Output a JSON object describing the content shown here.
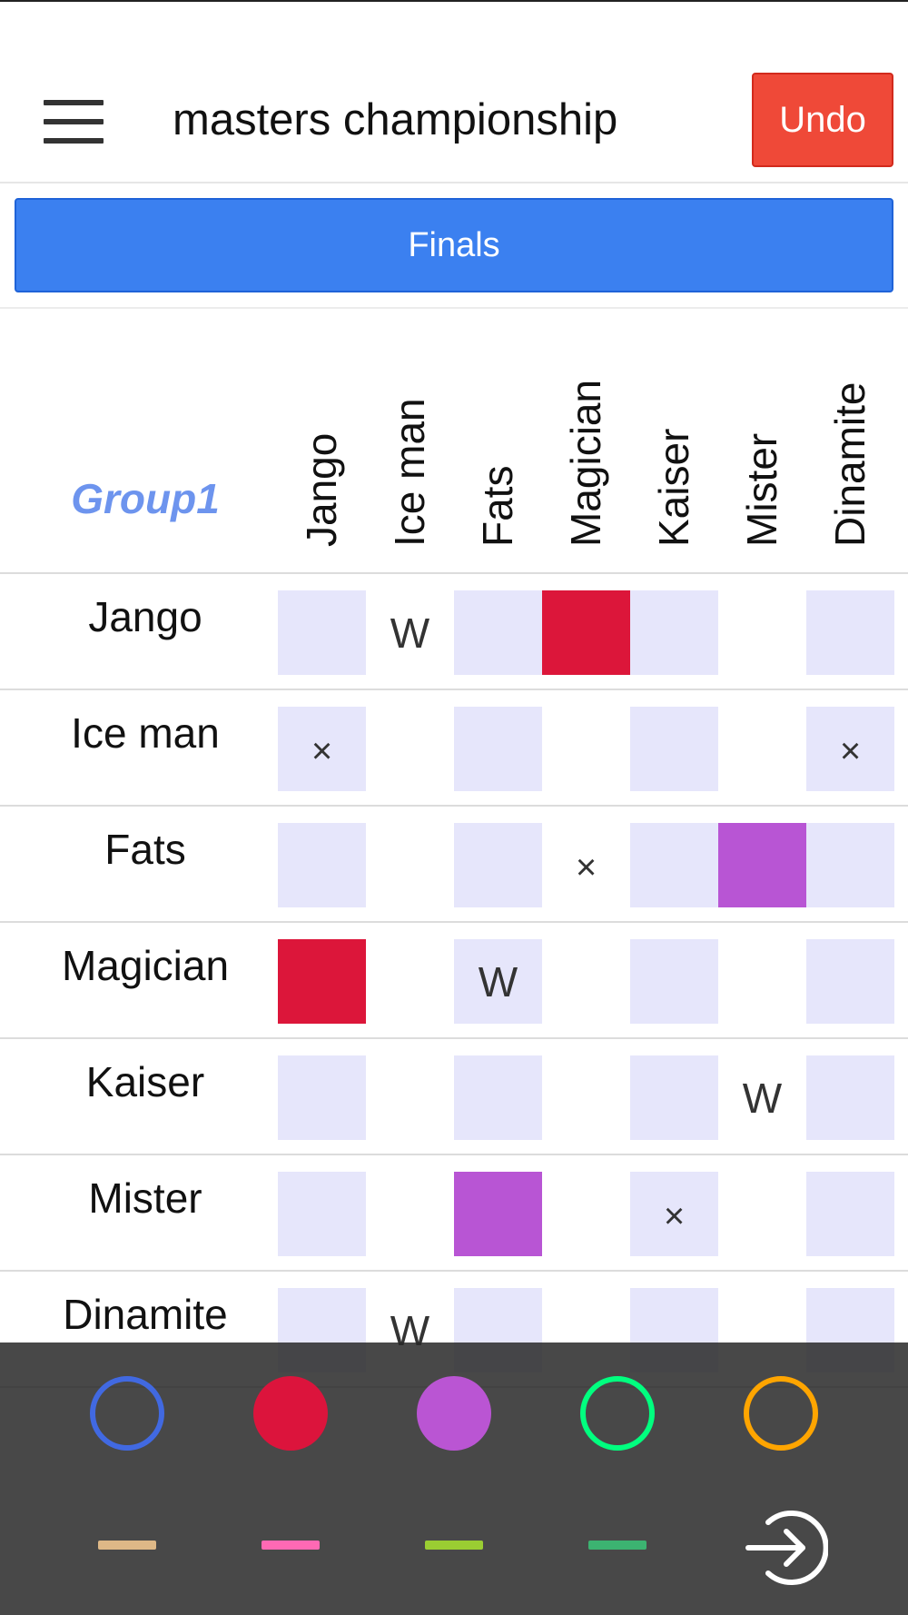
{
  "header": {
    "title": "masters championship",
    "undo_label": "Undo"
  },
  "round_button": "Finals",
  "group": {
    "label": "Group1",
    "players": [
      "Jango",
      "Ice man",
      "Fats",
      "Magician",
      "Kaiser",
      "Mister",
      "Dinamite"
    ],
    "cells": [
      [
        "light",
        "W",
        "light",
        "red",
        "light",
        "",
        "light"
      ],
      [
        "light-x",
        "",
        "light",
        "",
        "light",
        "",
        "light-x"
      ],
      [
        "light",
        "",
        "light",
        "x",
        "light",
        "purple",
        "light"
      ],
      [
        "red",
        "",
        "light-W",
        "",
        "light",
        "",
        "light"
      ],
      [
        "light",
        "",
        "light",
        "",
        "light",
        "W",
        "light"
      ],
      [
        "light",
        "",
        "purple",
        "",
        "light-x",
        "",
        "light"
      ],
      [
        "light",
        "W",
        "light",
        "",
        "light",
        "",
        "light"
      ]
    ]
  },
  "palette": {
    "markers": [
      {
        "name": "blue-ring-marker",
        "type": "ring",
        "color": "#4169e1"
      },
      {
        "name": "red-disc-marker",
        "type": "disc",
        "color": "#dc143c"
      },
      {
        "name": "purple-disc-marker",
        "type": "disc",
        "color": "#ba55d3"
      },
      {
        "name": "green-ring-marker",
        "type": "ring",
        "color": "#00ff7f"
      },
      {
        "name": "orange-ring-marker",
        "type": "ring",
        "color": "#ffa500"
      }
    ],
    "lines": [
      {
        "name": "tan-line-marker",
        "color": "#deb887"
      },
      {
        "name": "pink-line-marker",
        "color": "#ff69b4"
      },
      {
        "name": "lime-line-marker",
        "color": "#9acd32"
      },
      {
        "name": "green-line-marker",
        "color": "#3cb371"
      }
    ],
    "exit_icon": "exit-icon"
  }
}
